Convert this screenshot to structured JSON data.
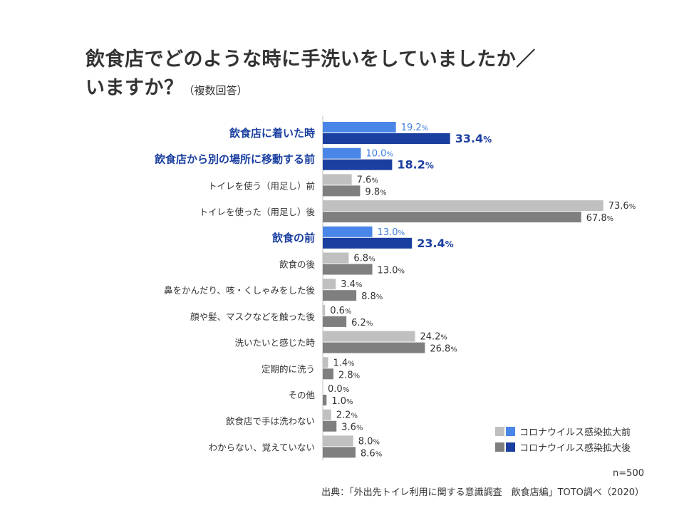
{
  "title": {
    "line1": "飲食店でどのような時に手洗いをしていましたか／",
    "line2": "いますか？",
    "note": "（複数回答）"
  },
  "chart_data": {
    "type": "bar",
    "orientation": "horizontal",
    "unit": "%",
    "categories": [
      "飲食店に着いた時",
      "飲食店から別の場所に移動する前",
      "トイレを使う（用足し）前",
      "トイレを使った（用足し）後",
      "飲食の前",
      "飲食の後",
      "鼻をかんだり、咳・くしゃみをした後",
      "顔や髪、マスクなどを触った後",
      "洗いたいと感じた時",
      "定期的に洗う",
      "その他",
      "飲食店で手は洗わない",
      "わからない、覚えていない"
    ],
    "highlighted": [
      true,
      true,
      false,
      false,
      true,
      false,
      false,
      false,
      false,
      false,
      false,
      false,
      false
    ],
    "series": [
      {
        "name": "コロナウイルス感染拡大前",
        "values": [
          19.2,
          10.0,
          7.6,
          73.6,
          13.0,
          6.8,
          3.4,
          0.6,
          24.2,
          1.4,
          0.0,
          2.2,
          8.0
        ]
      },
      {
        "name": "コロナウイルス感染拡大後",
        "values": [
          33.4,
          18.2,
          9.8,
          67.8,
          23.4,
          13.0,
          8.8,
          6.2,
          26.8,
          2.8,
          1.0,
          3.6,
          8.6
        ]
      }
    ],
    "value_labels": {
      "before": [
        "19.2",
        "10.0",
        "7.6",
        "73.6",
        "13.0",
        "6.8",
        "3.4",
        "0.6",
        "24.2",
        "1.4",
        "0.0",
        "2.2",
        "8.0"
      ],
      "after": [
        "33.4",
        "18.2",
        "9.8",
        "67.8",
        "23.4",
        "13.0",
        "8.8",
        "6.2",
        "26.8",
        "2.8",
        "1.0",
        "3.6",
        "8.6"
      ],
      "suffix": "%"
    },
    "xlim": [
      0,
      75
    ],
    "grid": false,
    "legend_position": "bottom-right"
  },
  "colors": {
    "before_normal": "#c0c0c0",
    "after_normal": "#7f7f7f",
    "before_highlight": "#4a86e8",
    "after_highlight": "#1a3fa0",
    "axis": "#bfbfbf"
  },
  "footer": {
    "n": "n=500",
    "source": "出典：「外出先トイレ利用に関する意識調査　飲食店編」TOTO調べ（2020）"
  }
}
